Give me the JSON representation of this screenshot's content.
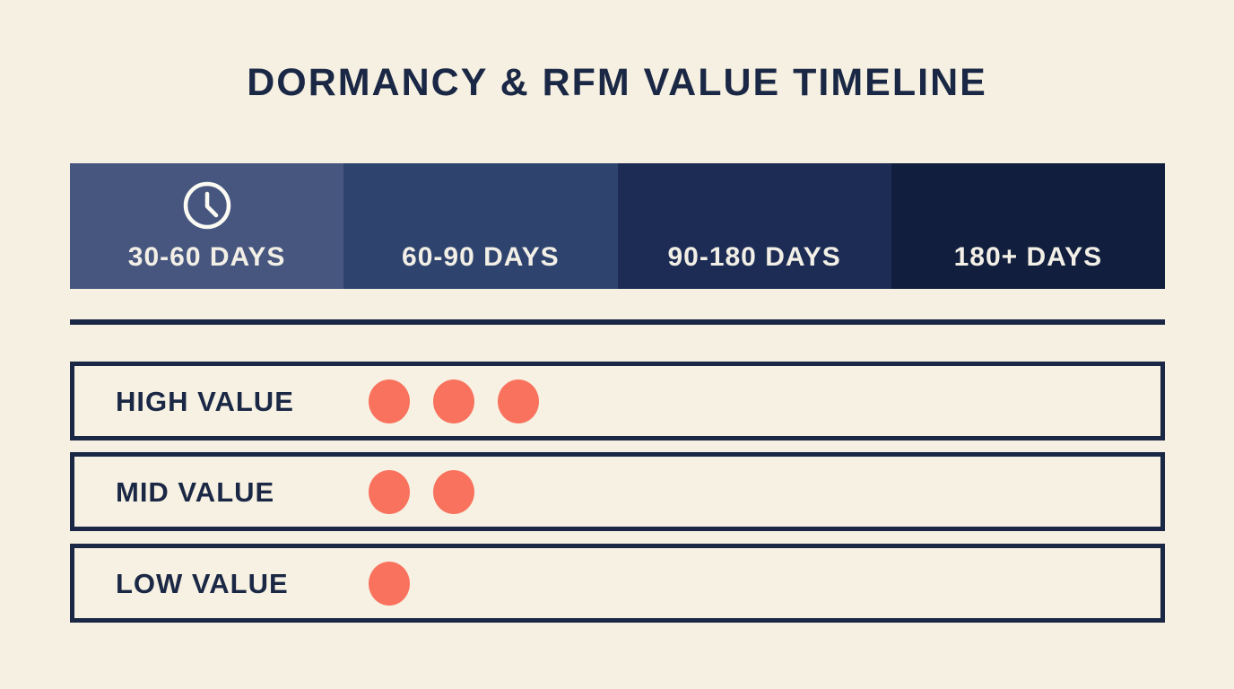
{
  "title": "DORMANCY & RFM VALUE TIMELINE",
  "colors": {
    "background": "#f5f0e1",
    "navy_text": "#1b2845",
    "bar_label": "#f2efe6",
    "dot": "#f9725e",
    "divider": "#1b2845"
  },
  "timeline": {
    "segments": [
      {
        "label": "30-60 DAYS",
        "color": "#47567f",
        "icon": "clock-icon"
      },
      {
        "label": "60-90 DAYS",
        "color": "#2f436f"
      },
      {
        "label": "90-180 DAYS",
        "color": "#1d2c55"
      },
      {
        "label": "180+ DAYS",
        "color": "#111e3e"
      }
    ]
  },
  "rows": [
    {
      "label": "HIGH VALUE",
      "dots": 3
    },
    {
      "label": "MID VALUE",
      "dots": 2
    },
    {
      "label": "LOW VALUE",
      "dots": 1
    }
  ]
}
